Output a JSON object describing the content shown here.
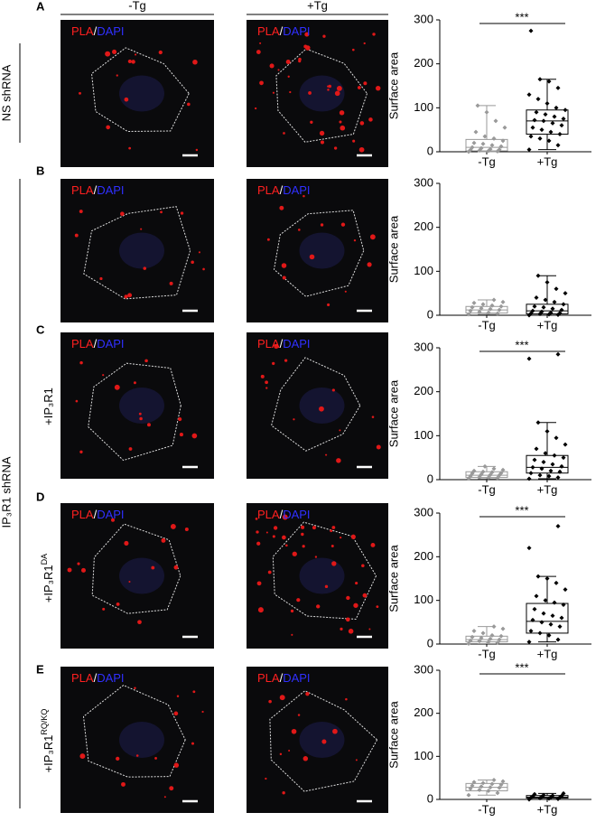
{
  "column_headers": [
    "-Tg",
    "+Tg"
  ],
  "image_label": {
    "pla": "PLA",
    "slash": "/",
    "dapi": "DAPI"
  },
  "group_labels": [
    "NS shRNA",
    "IP₃R1 shRNA"
  ],
  "rows": [
    {
      "letter": "A"
    },
    {
      "letter": "B"
    },
    {
      "letter": "C",
      "condition": "+IP₃R1"
    },
    {
      "letter": "D",
      "condition": "+IP₃R1",
      "condition_sup": "DA"
    },
    {
      "letter": "E",
      "condition": "+IP₃R1",
      "condition_sup": "RQ/KQ"
    }
  ],
  "chart_data": [
    {
      "type": "box",
      "y_label": "Surface area",
      "categories": [
        "-Tg",
        "+Tg"
      ],
      "colors": [
        "#999999",
        "#000000"
      ],
      "ylim": [
        0,
        300
      ],
      "yticks": [
        0,
        100,
        200,
        300
      ],
      "annotation": "***",
      "boxes": [
        {
          "whisker_low": 0,
          "q1": 2,
          "median": 10,
          "q3": 28,
          "whisker_high": 105
        },
        {
          "whisker_low": 5,
          "q1": 40,
          "median": 70,
          "q3": 95,
          "whisker_high": 165
        }
      ],
      "points": [
        [
          0,
          1,
          2,
          3,
          4,
          5,
          6,
          8,
          10,
          12,
          15,
          18,
          20,
          25,
          30,
          35,
          45,
          55,
          70,
          90,
          105
        ],
        [
          5,
          15,
          25,
          30,
          35,
          40,
          45,
          50,
          55,
          60,
          65,
          70,
          72,
          75,
          80,
          85,
          90,
          95,
          100,
          110,
          120,
          130,
          145,
          160,
          165,
          275
        ]
      ]
    },
    {
      "type": "box",
      "y_label": "Surface area",
      "categories": [
        "-Tg",
        "+Tg"
      ],
      "colors": [
        "#999999",
        "#000000"
      ],
      "ylim": [
        0,
        300
      ],
      "yticks": [
        0,
        100,
        200,
        300
      ],
      "boxes": [
        {
          "whisker_low": 2,
          "q1": 5,
          "median": 12,
          "q3": 20,
          "whisker_high": 35
        },
        {
          "whisker_low": 0,
          "q1": 3,
          "median": 10,
          "q3": 25,
          "whisker_high": 90
        }
      ],
      "points": [
        [
          2,
          4,
          6,
          8,
          10,
          12,
          14,
          16,
          18,
          20,
          22,
          25,
          28,
          30,
          35
        ],
        [
          0,
          1,
          2,
          3,
          4,
          5,
          6,
          8,
          10,
          12,
          15,
          18,
          20,
          25,
          30,
          35,
          40,
          50,
          60,
          75,
          90
        ]
      ]
    },
    {
      "type": "box",
      "y_label": "Surface area",
      "categories": [
        "-Tg",
        "+Tg"
      ],
      "colors": [
        "#999999",
        "#000000"
      ],
      "ylim": [
        0,
        300
      ],
      "yticks": [
        0,
        100,
        200,
        300
      ],
      "annotation": "***",
      "boxes": [
        {
          "whisker_low": 2,
          "q1": 5,
          "median": 10,
          "q3": 18,
          "whisker_high": 30
        },
        {
          "whisker_low": 2,
          "q1": 15,
          "median": 28,
          "q3": 55,
          "whisker_high": 130
        }
      ],
      "points": [
        [
          2,
          4,
          5,
          6,
          8,
          10,
          11,
          12,
          14,
          15,
          17,
          18,
          20,
          22,
          25,
          30
        ],
        [
          2,
          5,
          8,
          10,
          15,
          18,
          20,
          25,
          28,
          30,
          35,
          40,
          45,
          50,
          55,
          60,
          70,
          80,
          95,
          110,
          130,
          275,
          285
        ]
      ]
    },
    {
      "type": "box",
      "y_label": "Surface area",
      "categories": [
        "-Tg",
        "+Tg"
      ],
      "colors": [
        "#999999",
        "#000000"
      ],
      "ylim": [
        0,
        300
      ],
      "yticks": [
        0,
        100,
        200,
        300
      ],
      "annotation": "***",
      "boxes": [
        {
          "whisker_low": 1,
          "q1": 5,
          "median": 10,
          "q3": 18,
          "whisker_high": 40
        },
        {
          "whisker_low": 5,
          "q1": 25,
          "median": 52,
          "q3": 93,
          "whisker_high": 155
        }
      ],
      "points": [
        [
          1,
          3,
          5,
          7,
          8,
          10,
          12,
          14,
          16,
          18,
          20,
          25,
          30,
          35,
          40
        ],
        [
          5,
          10,
          20,
          25,
          30,
          40,
          45,
          50,
          55,
          60,
          65,
          70,
          80,
          90,
          95,
          100,
          110,
          125,
          140,
          150,
          155,
          220,
          270
        ]
      ]
    },
    {
      "type": "box",
      "y_label": "Surface area",
      "categories": [
        "-Tg",
        "+Tg"
      ],
      "colors": [
        "#999999",
        "#000000"
      ],
      "ylim": [
        0,
        300
      ],
      "yticks": [
        0,
        100,
        200,
        300
      ],
      "annotation": "***",
      "boxes": [
        {
          "whisker_low": 10,
          "q1": 20,
          "median": 28,
          "q3": 37,
          "whisker_high": 45
        },
        {
          "whisker_low": 0,
          "q1": 3,
          "median": 5,
          "q3": 9,
          "whisker_high": 14
        }
      ],
      "points": [
        [
          10,
          15,
          20,
          22,
          25,
          27,
          28,
          30,
          32,
          34,
          36,
          38,
          40,
          42,
          45
        ],
        [
          0,
          1,
          2,
          3,
          4,
          5,
          5,
          6,
          7,
          8,
          9,
          10,
          12,
          14
        ]
      ]
    }
  ]
}
